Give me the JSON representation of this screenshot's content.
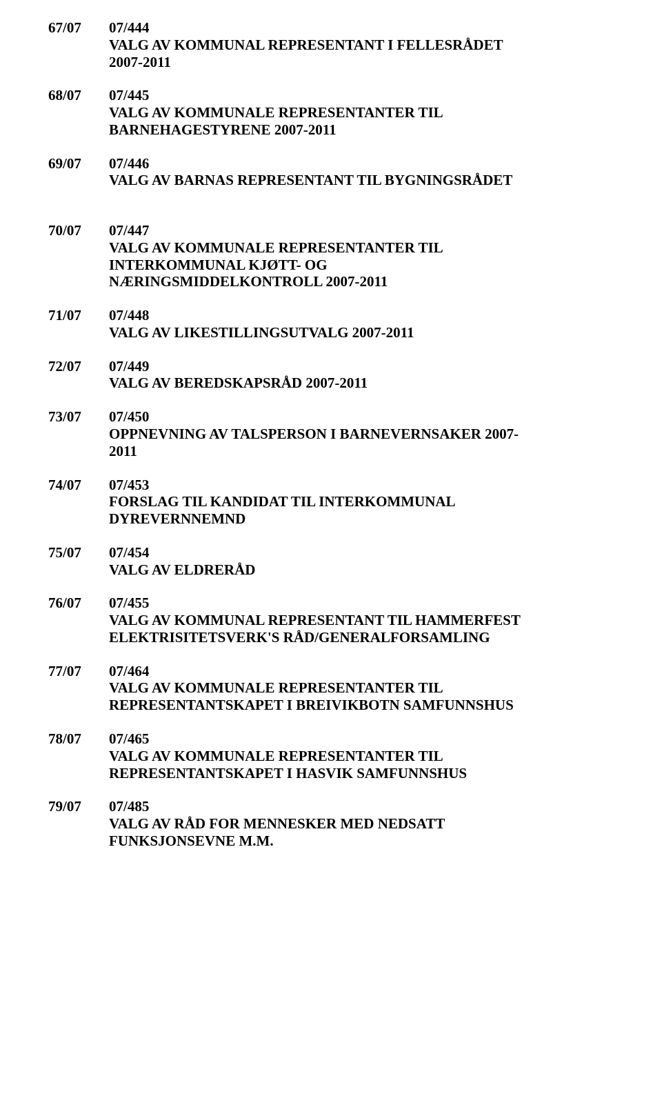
{
  "entries": [
    {
      "left": "67/07",
      "code": "07/444",
      "title_lines": [
        "VALG AV KOMMUNAL REPRESENTANT I FELLESRÅDET",
        "2007-2011"
      ],
      "gap_after": 24
    },
    {
      "left": "68/07",
      "code": "07/445",
      "title_lines": [
        "VALG AV KOMMUNALE REPRESENTANTER TIL",
        "BARNEHAGESTYRENE 2007-2011"
      ],
      "gap_after": 24
    },
    {
      "left": "69/07",
      "code": "07/446",
      "title_lines": [
        "VALG AV BARNAS REPRESENTANT TIL BYGNINGSRÅDET"
      ],
      "gap_after": 48
    },
    {
      "left": "70/07",
      "code": "07/447",
      "title_lines": [
        "VALG AV KOMMUNALE REPRESENTANTER TIL",
        "INTERKOMMUNAL KJØTT- OG",
        "NÆRINGSMIDDELKONTROLL 2007-2011"
      ],
      "gap_after": 24
    },
    {
      "left": "71/07",
      "code": "07/448",
      "title_lines": [
        "VALG AV LIKESTILLINGSUTVALG 2007-2011"
      ],
      "gap_after": 24
    },
    {
      "left": "72/07",
      "code": "07/449",
      "title_lines": [
        "VALG AV BEREDSKAPSRÅD 2007-2011"
      ],
      "gap_after": 24
    },
    {
      "left": "73/07",
      "code": "07/450",
      "title_lines": [
        "OPPNEVNING AV TALSPERSON I BARNEVERNSAKER 2007-",
        "2011"
      ],
      "gap_after": 24
    },
    {
      "left": "74/07",
      "code": "07/453",
      "title_lines": [
        "FORSLAG TIL KANDIDAT TIL INTERKOMMUNAL",
        "DYREVERNNEMND"
      ],
      "gap_after": 24
    },
    {
      "left": "75/07",
      "code": "07/454",
      "title_lines": [
        "VALG AV ELDRERÅD"
      ],
      "gap_after": 24
    },
    {
      "left": "76/07",
      "code": "07/455",
      "title_lines": [
        "VALG AV KOMMUNAL REPRESENTANT TIL HAMMERFEST",
        "ELEKTRISITETSVERK'S  RÅD/GENERALFORSAMLING"
      ],
      "gap_after": 24
    },
    {
      "left": "77/07",
      "code": "07/464",
      "title_lines": [
        "VALG AV KOMMUNALE REPRESENTANTER TIL",
        "REPRESENTANTSKAPET I  BREIVIKBOTN SAMFUNNSHUS"
      ],
      "gap_after": 24
    },
    {
      "left": "78/07",
      "code": "07/465",
      "title_lines": [
        "VALG AV KOMMUNALE REPRESENTANTER TIL",
        "REPRESENTANTSKAPET I HASVIK SAMFUNNSHUS"
      ],
      "gap_after": 24
    },
    {
      "left": "79/07",
      "code": "07/485",
      "title_lines": [
        "VALG AV RÅD FOR MENNESKER MED NEDSATT",
        "FUNKSJONSEVNE M.M."
      ],
      "gap_after": 0
    }
  ]
}
